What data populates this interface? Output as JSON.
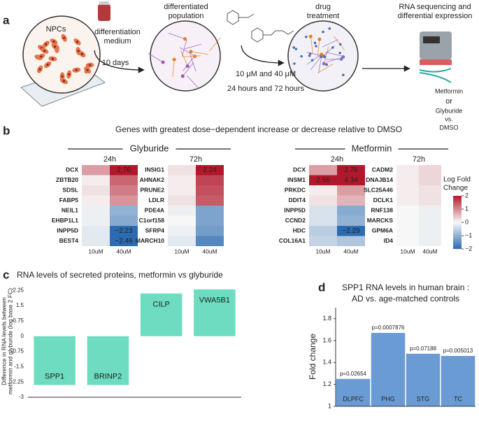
{
  "panel_labels": [
    "a",
    "b",
    "c",
    "d"
  ],
  "schematic": {
    "npcs": "NPCs",
    "medium": [
      "differentiation",
      "medium"
    ],
    "duration": "10 days",
    "population": [
      "differentiated",
      "population"
    ],
    "doses": "10 μM and 40 μM",
    "times": "24 hours and 72 hours",
    "treatment": [
      "drug",
      "treatment"
    ],
    "sequencing": [
      "RNA sequencing and",
      "differential expression"
    ],
    "comparison": [
      "Metformin",
      "or",
      "Glyburide",
      "vs.",
      "DMSO"
    ]
  },
  "chart_data": [
    {
      "type": "heatmap",
      "title": "Genes with greatest dose−dependent increase or decrease relative to DMSO",
      "columns": [
        "10uM",
        "40uM"
      ],
      "colorscale": [
        "#2b6cb0",
        "#f7f7f7",
        "#b2182b"
      ],
      "label_color": "#ffe566",
      "clim": [
        -2,
        2
      ],
      "colorbar_title": [
        "Log Fold",
        "Change"
      ],
      "cticks": [
        2,
        1,
        0,
        {
          "value": -1,
          "label": "−1"
        },
        {
          "value": -2,
          "label": "−2"
        }
      ],
      "groups": [
        {
          "name": "Glyburide",
          "panels": [
            {
              "name": "24h",
              "genes": [
                "DCX",
                "ZBTB20",
                "SDSL",
                "FABP5",
                "NEIL1",
                "EHBP1L1",
                "INPP5D",
                "BEST4"
              ],
              "values": [
                [
                  0.8,
                  2.76
                ],
                [
                  0.1,
                  1.3
                ],
                [
                  0.2,
                  1.1
                ],
                [
                  0.1,
                  0.9
                ],
                [
                  -0.1,
                  -1.0
                ],
                [
                  -0.1,
                  -1.1
                ],
                [
                  -0.2,
                  -2.23
                ],
                [
                  -0.2,
                  -2.46
                ]
              ],
              "value_labels": [
                [
                  null,
                  "2.76"
                ],
                [
                  null,
                  null
                ],
                [
                  null,
                  null
                ],
                [
                  null,
                  null
                ],
                [
                  null,
                  null
                ],
                [
                  null,
                  null
                ],
                [
                  null,
                  "−2.23"
                ],
                [
                  null,
                  "−2.46"
                ]
              ]
            },
            {
              "name": "72h",
              "genes": [
                "INSIG1",
                "AHNAK2",
                "PRUNE2",
                "LDLR",
                "PDE4A",
                "C1orf158",
                "SFRP4",
                "MARCH10"
              ],
              "values": [
                [
                  0.2,
                  2.24
                ],
                [
                  0.1,
                  1.6
                ],
                [
                  0.1,
                  1.5
                ],
                [
                  0.2,
                  1.4
                ],
                [
                  -0.1,
                  -1.2
                ],
                [
                  0.0,
                  -1.2
                ],
                [
                  -0.1,
                  -1.3
                ],
                [
                  -0.2,
                  -1.6
                ]
              ],
              "value_labels": [
                [
                  null,
                  "2.24"
                ],
                [
                  null,
                  null
                ],
                [
                  null,
                  null
                ],
                [
                  null,
                  null
                ],
                [
                  null,
                  null
                ],
                [
                  null,
                  null
                ],
                [
                  null,
                  null
                ],
                [
                  null,
                  null
                ]
              ]
            }
          ]
        },
        {
          "name": "Metformin",
          "panels": [
            {
              "name": "24h",
              "genes": [
                "DCX",
                "INSM1",
                "PRKDC",
                "DDIT4",
                "INPP5D",
                "CCND2",
                "HDC",
                "COL16A1"
              ],
              "values": [
                [
                  0.8,
                  2.76
                ],
                [
                  2.56,
                  4.34
                ],
                [
                  0.1,
                  0.8
                ],
                [
                  0.2,
                  0.6
                ],
                [
                  -0.3,
                  -1.1
                ],
                [
                  -0.3,
                  -1.0
                ],
                [
                  -0.6,
                  -2.29
                ],
                [
                  -0.5,
                  -0.7
                ]
              ],
              "value_labels": [
                [
                  null,
                  "2.76"
                ],
                [
                  "2.56",
                  "4.34"
                ],
                [
                  null,
                  null
                ],
                [
                  null,
                  null
                ],
                [
                  null,
                  null
                ],
                [
                  null,
                  null
                ],
                [
                  null,
                  "−2.29"
                ],
                [
                  null,
                  null
                ]
              ]
            },
            {
              "name": "72h",
              "genes": [
                "CADM2",
                "DNAJB14",
                "SLC25A46",
                "DCLK1",
                "RNF138",
                "MARCKS",
                "GPM6A",
                "ID4"
              ],
              "values": [
                [
                  0.1,
                  0.3
                ],
                [
                  0.1,
                  0.3
                ],
                [
                  0.1,
                  0.2
                ],
                [
                  0.1,
                  0.2
                ],
                [
                  0.0,
                  -0.1
                ],
                [
                  0.0,
                  -0.1
                ],
                [
                  0.0,
                  -0.1
                ],
                [
                  0.0,
                  -0.1
                ]
              ],
              "value_labels": [
                [
                  null,
                  null
                ],
                [
                  null,
                  null
                ],
                [
                  null,
                  null
                ],
                [
                  null,
                  null
                ],
                [
                  null,
                  null
                ],
                [
                  null,
                  null
                ],
                [
                  null,
                  null
                ],
                [
                  null,
                  null
                ]
              ]
            }
          ]
        }
      ]
    },
    {
      "type": "bar",
      "title": "RNA levels of secreted proteins, metformin vs glyburide",
      "ylabel": [
        "Difference in RNA levels between",
        "metformin and glyburide (log base 2 FC)"
      ],
      "categories": [
        "SPP1",
        "BRINP2",
        "CILP",
        "VWA5B1"
      ],
      "values": [
        -2.4,
        -2.4,
        2.1,
        2.3
      ],
      "color": "#6ddcc0",
      "ylim": [
        -3,
        2.5
      ],
      "yticks": [
        -3,
        -2.25,
        -1.5,
        -0.75,
        0,
        0.75,
        1.5,
        2.25
      ]
    },
    {
      "type": "bar",
      "title": [
        "SPP1 RNA levels in human brain :",
        "AD vs. age-matched controls"
      ],
      "ylabel": "Fold change",
      "categories": [
        "DLPFC",
        "PHG",
        "STG",
        "TC"
      ],
      "values": [
        1.25,
        1.67,
        1.48,
        1.46
      ],
      "p_values": [
        "p=0.02654",
        "p=0.0007876",
        "p=0.07188",
        "p=0.005013"
      ],
      "color": "#6a9bd4",
      "ylim": [
        1,
        1.9
      ],
      "yticks": [
        1,
        1.2,
        1.4,
        1.6,
        1.8
      ]
    }
  ]
}
